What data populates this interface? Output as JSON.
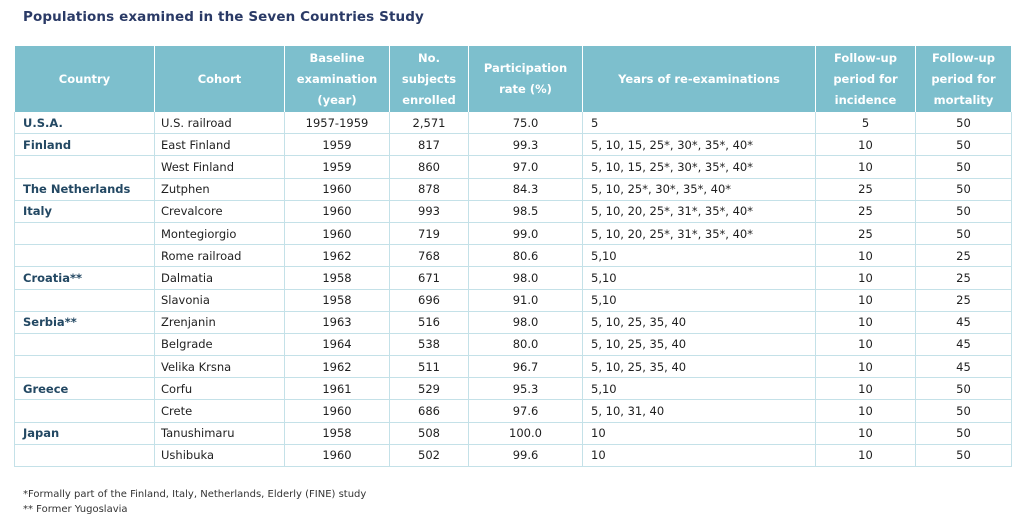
{
  "title": "Populations examined in the Seven Countries Study",
  "headers": {
    "country": "Country",
    "cohort": "Cohort",
    "baseline": "Baseline examination (year)",
    "subjects": "No. subjects enrolled",
    "participation": "Participation rate (%)",
    "years": "Years of re-examinations",
    "incidence": "Follow-up period for incidence",
    "mortality": "Follow-up period for mortality"
  },
  "rows": [
    {
      "country": "U.S.A.",
      "cohort": "U.S. railroad",
      "baseline": "1957-1959",
      "subjects": "2,571",
      "participation": "75.0",
      "years": "5",
      "incidence": "5",
      "mortality": "50"
    },
    {
      "country": "Finland",
      "cohort": "East Finland",
      "baseline": "1959",
      "subjects": "817",
      "participation": "99.3",
      "years": "5, 10, 15, 25*, 30*, 35*, 40*",
      "incidence": "10",
      "mortality": "50"
    },
    {
      "country": "",
      "cohort": "West Finland",
      "baseline": "1959",
      "subjects": "860",
      "participation": "97.0",
      "years": "5, 10, 15, 25*, 30*, 35*, 40*",
      "incidence": "10",
      "mortality": "50"
    },
    {
      "country": "The Netherlands",
      "cohort": "Zutphen",
      "baseline": "1960",
      "subjects": "878",
      "participation": "84.3",
      "years": "5, 10, 25*, 30*, 35*, 40*",
      "incidence": "25",
      "mortality": "50"
    },
    {
      "country": "Italy",
      "cohort": "Crevalcore",
      "baseline": "1960",
      "subjects": "993",
      "participation": "98.5",
      "years": "5, 10, 20, 25*, 31*, 35*, 40*",
      "incidence": "25",
      "mortality": "50"
    },
    {
      "country": "",
      "cohort": "Montegiorgio",
      "baseline": "1960",
      "subjects": "719",
      "participation": "99.0",
      "years": "5, 10, 20, 25*, 31*, 35*, 40*",
      "incidence": "25",
      "mortality": "50"
    },
    {
      "country": "",
      "cohort": "Rome railroad",
      "baseline": "1962",
      "subjects": "768",
      "participation": "80.6",
      "years": "5,10",
      "incidence": "10",
      "mortality": "25"
    },
    {
      "country": "Croatia**",
      "cohort": "Dalmatia",
      "baseline": "1958",
      "subjects": "671",
      "participation": "98.0",
      "years": "5,10",
      "incidence": "10",
      "mortality": "25"
    },
    {
      "country": "",
      "cohort": "Slavonia",
      "baseline": "1958",
      "subjects": "696",
      "participation": "91.0",
      "years": "5,10",
      "incidence": "10",
      "mortality": "25"
    },
    {
      "country": "Serbia**",
      "cohort": "Zrenjanin",
      "baseline": "1963",
      "subjects": "516",
      "participation": "98.0",
      "years": "5, 10, 25, 35, 40",
      "incidence": "10",
      "mortality": "45"
    },
    {
      "country": "",
      "cohort": "Belgrade",
      "baseline": "1964",
      "subjects": "538",
      "participation": "80.0",
      "years": "5, 10, 25, 35, 40",
      "incidence": "10",
      "mortality": "45"
    },
    {
      "country": "",
      "cohort": "Velika Krsna",
      "baseline": "1962",
      "subjects": "511",
      "participation": "96.7",
      "years": "5, 10, 25, 35, 40",
      "incidence": "10",
      "mortality": "45"
    },
    {
      "country": "Greece",
      "cohort": "Corfu",
      "baseline": "1961",
      "subjects": "529",
      "participation": "95.3",
      "years": "5,10",
      "incidence": "10",
      "mortality": "50"
    },
    {
      "country": "",
      "cohort": "Crete",
      "baseline": "1960",
      "subjects": "686",
      "participation": "97.6",
      "years": "5, 10, 31, 40",
      "incidence": "10",
      "mortality": "50"
    },
    {
      "country": "Japan",
      "cohort": "Tanushimaru",
      "baseline": "1958",
      "subjects": "508",
      "participation": "100.0",
      "years": "10",
      "incidence": "10",
      "mortality": "50"
    },
    {
      "country": "",
      "cohort": "Ushibuka",
      "baseline": "1960",
      "subjects": "502",
      "participation": "99.6",
      "years": "10",
      "incidence": "10",
      "mortality": "50"
    }
  ],
  "footnotes": [
    "*Formally part of the Finland, Italy, Netherlands, Elderly (FINE) study",
    "** Former Yugoslavia"
  ],
  "colors": {
    "header_bg": "#7dbfcd",
    "header_text": "#ffffff",
    "title_text": "#2a3a66",
    "country_text": "#234863",
    "row_border": "#c4e1e8"
  }
}
